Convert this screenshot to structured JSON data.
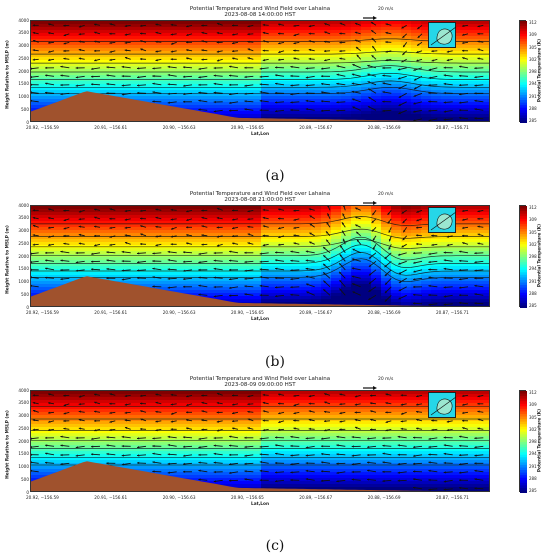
{
  "chart_data": [
    {
      "type": "heatmap",
      "title": "Potential Temperature and Wind Field over Lahaina",
      "time": "2023-08-08 14:00:00 HST",
      "caption": "(a)",
      "xlabel": "Lat,Lon",
      "ylabel": "Height Relative to MSLP (m)",
      "colorbar_label": "Potential Temperature (K)",
      "colorbar_ticks": [
        "312",
        "309",
        "305",
        "302",
        "298",
        "294",
        "291",
        "288",
        "285"
      ],
      "yticks": [
        "4000",
        "3500",
        "3000",
        "2500",
        "2000",
        "1500",
        "1000",
        "500",
        "0"
      ],
      "xticks": [
        "20.92, −156.59",
        "20.91, −156.61",
        "20.90, −156.63",
        "20.90, −156.65",
        "20.89, −156.67",
        "20.88, −156.69",
        "20.87, −156.71"
      ],
      "ylim": [
        0,
        4000
      ],
      "clim": [
        285,
        312
      ],
      "reference_vector": "20 m/s",
      "colormap": "jet",
      "terrain_color": "#a0522d",
      "isotherm_heights": [
        3200,
        2700,
        2350,
        2000,
        1700,
        1400,
        1150
      ],
      "flow_feature": "weak wave near x=0.78"
    },
    {
      "type": "heatmap",
      "title": "Potential Temperature and Wind Field over Lahaina",
      "time": "2023-08-08 21:00:00 HST",
      "caption": "(b)",
      "xlabel": "Lat,Lon",
      "ylabel": "Height Relative to MSLP (m)",
      "colorbar_label": "Potential Temperature (K)",
      "colorbar_ticks": [
        "312",
        "309",
        "305",
        "302",
        "298",
        "294",
        "291",
        "288",
        "285"
      ],
      "yticks": [
        "4000",
        "3500",
        "3000",
        "2500",
        "2000",
        "1500",
        "1000",
        "500",
        "0"
      ],
      "xticks": [
        "20.92, −156.59",
        "20.91, −156.61",
        "20.90, −156.63",
        "20.90, −156.65",
        "20.89, −156.67",
        "20.88, −156.69",
        "20.87, −156.71"
      ],
      "ylim": [
        0,
        4000
      ],
      "clim": [
        285,
        312
      ],
      "reference_vector": "20 m/s",
      "colormap": "jet",
      "terrain_color": "#a0522d",
      "isotherm_heights": [
        3300,
        2800,
        2400,
        2050,
        1750,
        1450,
        1200
      ],
      "flow_feature": "strong lee wave near x=0.72"
    },
    {
      "type": "heatmap",
      "title": "Potential Temperature and Wind Field over Lahaina",
      "time": "2023-08-09 09:00:00 HST",
      "caption": "(c)",
      "xlabel": "Lat,Lon",
      "ylabel": "Height Relative to MSLP (m)",
      "colorbar_label": "Potential Temperature (K)",
      "colorbar_ticks": [
        "312",
        "309",
        "305",
        "302",
        "298",
        "294",
        "291",
        "288",
        "285"
      ],
      "yticks": [
        "4000",
        "3500",
        "3000",
        "2500",
        "2000",
        "1500",
        "1000",
        "500",
        "0"
      ],
      "xticks": [
        "20.92, −156.59",
        "20.91, −156.61",
        "20.90, −156.63",
        "20.90, −156.65",
        "20.89, −156.67",
        "20.88, −156.69",
        "20.87, −156.71"
      ],
      "ylim": [
        0,
        4000
      ],
      "clim": [
        285,
        312
      ],
      "reference_vector": "20 m/s",
      "colormap": "jet",
      "terrain_color": "#a0522d",
      "isotherm_heights": [
        3400,
        2900,
        2450,
        2050,
        1750,
        1400,
        1100
      ],
      "flow_feature": "none"
    }
  ]
}
